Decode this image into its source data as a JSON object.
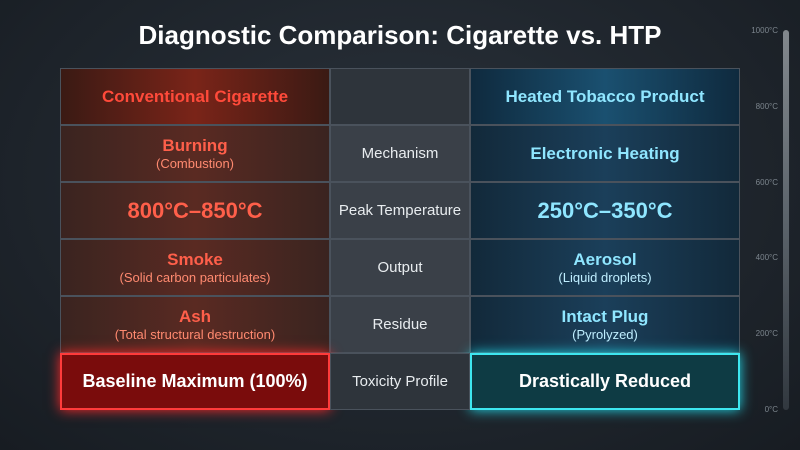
{
  "title": "Diagnostic Comparison: Cigarette vs. HTP",
  "table": {
    "headers": [
      "Conventional Cigarette",
      "Heated Tobacco Product"
    ],
    "rows": [
      {
        "label": "Mechanism",
        "left": {
          "main": "Burning",
          "sub": "(Combustion)"
        },
        "right": {
          "main": "Electronic Heating"
        }
      },
      {
        "label": "Peak Temperature",
        "left": {
          "main": "800°C–850°C"
        },
        "right": {
          "main": "250°C–350°C"
        }
      },
      {
        "label": "Output",
        "left": {
          "main": "Smoke",
          "sub": "(Solid carbon particulates)"
        },
        "right": {
          "main": "Aerosol",
          "sub": "(Liquid droplets)"
        }
      },
      {
        "label": "Residue",
        "left": {
          "main": "Ash",
          "sub": "(Total structural destruction)"
        },
        "right": {
          "main": "Intact Plug",
          "sub": "(Pyrolyzed)"
        }
      },
      {
        "label": "Toxicity Profile",
        "left": {
          "main": "Baseline Maximum (100%)"
        },
        "right": {
          "main": "Drastically Reduced"
        }
      }
    ]
  },
  "scale": {
    "labels": [
      "1000°C",
      "800°C",
      "600°C",
      "400°C",
      "200°C",
      "0°C"
    ]
  }
}
